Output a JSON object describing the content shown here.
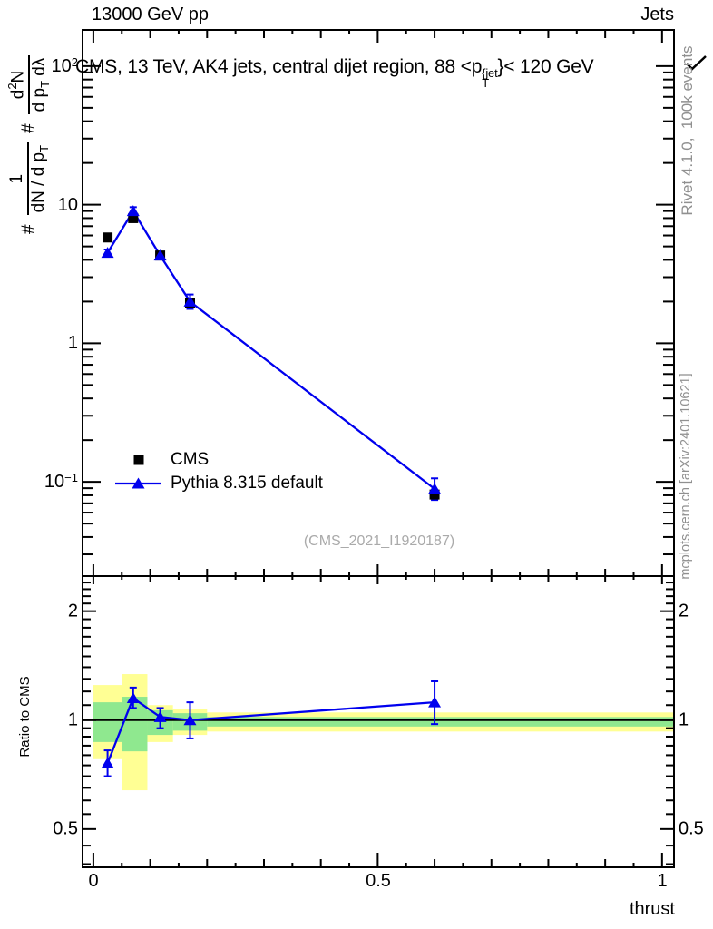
{
  "header": {
    "left": "13000 GeV pp",
    "right": "Jets"
  },
  "title": {
    "pre": "CMS, 13 TeV, AK4 jets, central dijet region, 88 <p",
    "sup": "{jet",
    "sub": "T",
    "post": "}< 120 GeV"
  },
  "ylabel_main": {
    "hash1": "#",
    "frac1_num": "1",
    "frac1_den": "dN / d p",
    "frac1_den_sub": "T",
    "hash2": "#",
    "frac2_num_pre": "d",
    "frac2_num_sup": "2",
    "frac2_num_post": "N",
    "frac2_den": "d p",
    "frac2_den_sub": "T",
    "frac2_den_post": " dλ"
  },
  "ylabel_ratio": "Ratio to CMS",
  "xlabel": "thrust",
  "watermark": "(CMS_2021_I1920187)",
  "side_notes": {
    "top": "Rivet 4.1.0,  100k events",
    "bottom": "mcplots.cern.ch [arXiv:2401.10621]"
  },
  "legend": {
    "items": [
      {
        "label": "CMS"
      },
      {
        "label": "Pythia 8.315 default"
      }
    ]
  },
  "axis_tick_labels": {
    "main_y": [
      {
        "base": "10",
        "exp": "2"
      },
      {
        "base": "10",
        "exp": ""
      },
      {
        "base": "1",
        "exp": ""
      },
      {
        "base": "10",
        "exp": "−1"
      }
    ],
    "ratio_y": [
      "2",
      "1",
      "0.5"
    ],
    "x": [
      "0",
      "0.5",
      "1"
    ]
  },
  "colors": {
    "mc_blue": "#0000ee",
    "band_yellow": "#ffff94",
    "band_green": "#8fe88f",
    "note_gray": "#909090",
    "watermark_gray": "#aaaaaa"
  },
  "chart_data": {
    "type": "line",
    "title": "CMS, 13 TeV, AK4 jets, central dijet region, 88 < pT^jet < 120 GeV",
    "xlabel": "thrust",
    "observable": "thrust",
    "x_bin_centers": [
      0.025,
      0.07,
      0.1175,
      0.17,
      0.6
    ],
    "x_bin_edges": [
      0.0,
      0.05,
      0.095,
      0.14,
      0.2,
      1.0
    ],
    "xlim": [
      -0.019,
      1.021
    ],
    "xticks": {
      "major": [
        0,
        0.5,
        1
      ],
      "medium": [
        0.1,
        0.2,
        0.3,
        0.4,
        0.6,
        0.7,
        0.8,
        0.9
      ],
      "small": [
        0.05,
        0.15,
        0.25,
        0.35,
        0.45,
        0.55,
        0.65,
        0.75,
        0.85,
        0.95
      ]
    },
    "main": {
      "yscale": "log",
      "ylim": [
        0.0209,
        182.4
      ],
      "ytick_values": [
        100,
        10,
        1,
        0.1
      ],
      "series": [
        {
          "name": "CMS",
          "marker": "square",
          "color": "#000000",
          "line": false,
          "values": [
            5.8,
            8.0,
            4.3,
            1.95,
            0.081
          ],
          "err_lo": [
            5.6,
            7.8,
            4.15,
            1.85,
            0.076
          ],
          "err_hi": [
            6.0,
            8.3,
            4.45,
            2.05,
            0.086
          ]
        },
        {
          "name": "Pythia 8.315 default",
          "marker": "triangle",
          "color": "#0000ee",
          "line": true,
          "values": [
            4.5,
            9.0,
            4.3,
            2.0,
            0.089
          ],
          "err_lo": [
            4.25,
            8.5,
            4.1,
            1.77,
            0.074
          ],
          "err_hi": [
            4.75,
            9.6,
            4.55,
            2.25,
            0.106
          ]
        }
      ]
    },
    "ratio": {
      "ylabel": "Ratio to CMS",
      "yscale": "log",
      "ylim": [
        0.392,
        2.5
      ],
      "baseline": 1,
      "ytick_values": [
        2,
        1,
        0.5
      ],
      "values": [
        0.76,
        1.15,
        1.02,
        1.0,
        1.12
      ],
      "err_lo": [
        0.7,
        1.08,
        0.95,
        0.89,
        0.975
      ],
      "err_hi": [
        0.825,
        1.23,
        1.08,
        1.12,
        1.28
      ],
      "bands": [
        {
          "xlo": 0.0,
          "xhi": 0.05,
          "yellow": [
            0.78,
            1.25
          ],
          "green": [
            0.87,
            1.12
          ]
        },
        {
          "xlo": 0.05,
          "xhi": 0.095,
          "yellow": [
            0.64,
            1.34
          ],
          "green": [
            0.82,
            1.16
          ]
        },
        {
          "xlo": 0.095,
          "xhi": 0.14,
          "yellow": [
            0.87,
            1.1
          ],
          "green": [
            0.91,
            1.065
          ]
        },
        {
          "xlo": 0.14,
          "xhi": 0.2,
          "yellow": [
            0.91,
            1.075
          ],
          "green": [
            0.935,
            1.045
          ]
        },
        {
          "xlo": 0.2,
          "xhi": 1.021,
          "yellow": [
            0.93,
            1.05
          ],
          "green": [
            0.96,
            1.02
          ]
        }
      ]
    },
    "legend_position": "middle-left"
  }
}
